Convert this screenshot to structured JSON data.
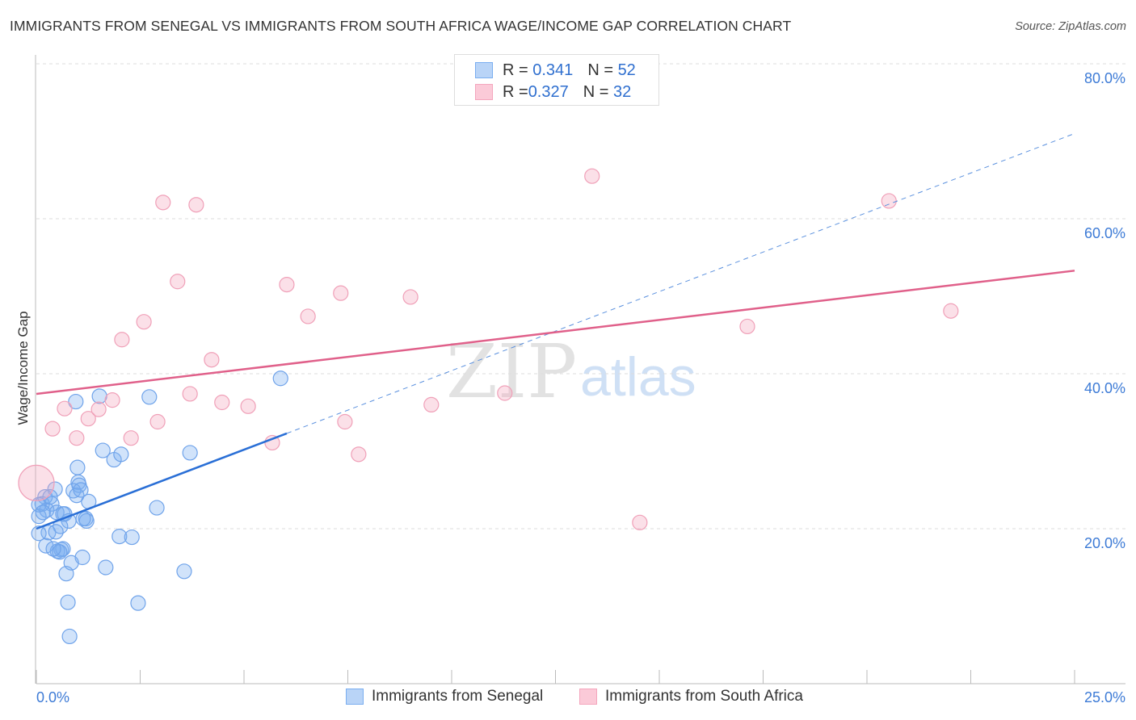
{
  "title": "IMMIGRANTS FROM SENEGAL VS IMMIGRANTS FROM SOUTH AFRICA WAGE/INCOME GAP CORRELATION CHART",
  "source": "Source: ZipAtlas.com",
  "watermark": {
    "zip": "ZIP",
    "atlas": "atlas"
  },
  "legend": {
    "rows": [
      {
        "r_label": "R = ",
        "r": "0.341",
        "n_label": "N = ",
        "n": "52"
      },
      {
        "r_label": "R = ",
        "r": "0.327",
        "n_label": "N = ",
        "n": "32"
      }
    ]
  },
  "colors": {
    "senegal": "#7aaef0",
    "senegal_line": "#2a6fd6",
    "south_africa": "#f4a6bd",
    "south_africa_line": "#e0608a",
    "value_text": "#2f6fcf"
  },
  "chart_data": {
    "type": "scatter",
    "title": "IMMIGRANTS FROM SENEGAL VS IMMIGRANTS FROM SOUTH AFRICA WAGE/INCOME GAP CORRELATION CHART",
    "xlabel": "",
    "ylabel": "Wage/Income Gap",
    "xlim": [
      0,
      25
    ],
    "ylim": [
      0,
      80
    ],
    "x_tick_labels": [
      "0.0%",
      "25.0%"
    ],
    "y_ticks": [
      20,
      40,
      60,
      80
    ],
    "y_tick_labels": [
      "20.0%",
      "40.0%",
      "60.0%",
      "80.0%"
    ],
    "grid": true,
    "legend_position": "top-center",
    "series": [
      {
        "name": "Immigrants from Senegal",
        "r": 0.341,
        "n": 52,
        "trend": {
          "x0": 0,
          "y0": 20.0,
          "x1": 25,
          "y1": 71.0,
          "solid_until": 6.03
        },
        "points": [
          [
            0.95,
            36.4
          ],
          [
            1.52,
            37.1
          ],
          [
            2.72,
            37.0
          ],
          [
            5.88,
            39.4
          ],
          [
            1.6,
            30.1
          ],
          [
            1.87,
            28.9
          ],
          [
            2.04,
            29.6
          ],
          [
            3.7,
            29.8
          ],
          [
            0.99,
            27.9
          ],
          [
            1.01,
            26.0
          ],
          [
            1.03,
            25.6
          ],
          [
            0.89,
            24.9
          ],
          [
            0.45,
            25.1
          ],
          [
            0.97,
            24.3
          ],
          [
            1.26,
            23.5
          ],
          [
            0.21,
            24.1
          ],
          [
            0.14,
            23.2
          ],
          [
            0.37,
            23.2
          ],
          [
            0.25,
            22.4
          ],
          [
            0.49,
            22.1
          ],
          [
            0.64,
            21.9
          ],
          [
            0.78,
            21.0
          ],
          [
            1.19,
            21.3
          ],
          [
            1.21,
            21.0
          ],
          [
            0.58,
            20.3
          ],
          [
            0.29,
            19.5
          ],
          [
            0.47,
            19.6
          ],
          [
            0.06,
            19.4
          ],
          [
            0.06,
            21.6
          ],
          [
            0.06,
            23.1
          ],
          [
            2.9,
            22.7
          ],
          [
            2.0,
            19.0
          ],
          [
            2.3,
            18.9
          ],
          [
            0.23,
            17.8
          ],
          [
            0.51,
            17.1
          ],
          [
            0.6,
            17.3
          ],
          [
            0.64,
            17.4
          ],
          [
            0.56,
            17.0
          ],
          [
            1.11,
            16.3
          ],
          [
            0.84,
            15.6
          ],
          [
            1.67,
            15.0
          ],
          [
            0.72,
            14.2
          ],
          [
            3.56,
            14.5
          ],
          [
            0.76,
            10.5
          ],
          [
            2.45,
            10.4
          ],
          [
            0.8,
            6.1
          ],
          [
            1.13,
            21.3
          ],
          [
            0.33,
            24.1
          ],
          [
            0.16,
            22.1
          ],
          [
            0.68,
            21.9
          ],
          [
            0.41,
            17.4
          ],
          [
            1.07,
            25.0
          ]
        ]
      },
      {
        "name": "Immigrants from South Africa",
        "r": 0.327,
        "n": 32,
        "trend": {
          "x0": 0,
          "y0": 37.4,
          "x1": 25,
          "y1": 53.3
        },
        "points": [
          [
            0,
            25.9,
            "large"
          ],
          [
            0.39,
            32.9
          ],
          [
            0.68,
            35.5
          ],
          [
            0.97,
            31.7
          ],
          [
            1.25,
            34.2
          ],
          [
            1.5,
            35.4
          ],
          [
            1.83,
            36.6
          ],
          [
            2.28,
            31.7
          ],
          [
            2.06,
            44.4
          ],
          [
            2.59,
            46.7
          ],
          [
            2.92,
            33.8
          ],
          [
            3.05,
            62.1
          ],
          [
            3.4,
            51.9
          ],
          [
            3.85,
            61.8
          ],
          [
            3.7,
            37.4
          ],
          [
            4.22,
            41.8
          ],
          [
            4.47,
            36.3
          ],
          [
            5.1,
            35.8
          ],
          [
            5.68,
            31.1
          ],
          [
            6.03,
            51.5
          ],
          [
            6.54,
            47.4
          ],
          [
            7.33,
            50.4
          ],
          [
            7.43,
            33.8
          ],
          [
            7.76,
            29.6
          ],
          [
            9.01,
            49.9
          ],
          [
            9.51,
            36.0
          ],
          [
            11.28,
            37.5
          ],
          [
            13.38,
            65.5
          ],
          [
            14.53,
            20.8
          ],
          [
            17.12,
            46.1
          ],
          [
            20.53,
            62.3
          ],
          [
            22.02,
            48.1
          ]
        ]
      }
    ]
  }
}
